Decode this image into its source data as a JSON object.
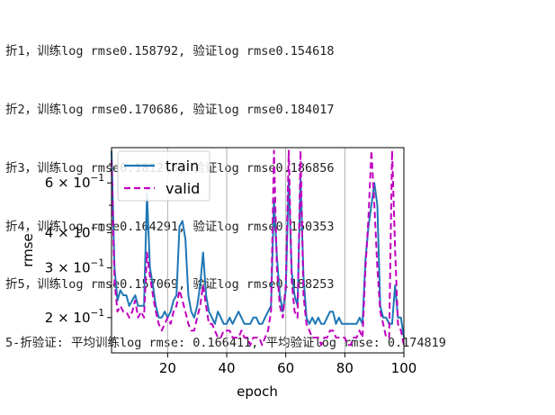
{
  "log_lines": [
    "折1，训练log rmse0.158792, 验证log rmse0.154618",
    "折2，训练log rmse0.170686, 验证log rmse0.184017",
    "折3，训练log rmse0.181218, 验证log rmse0.186856",
    "折4，训练log rmse0.164291, 验证log rmse0.160353",
    "折5，训练log rmse0.157069, 验证log rmse0.188253",
    "5-折验证: 平均训练log rmse: 0.166411, 平均验证log rmse: 0.174819"
  ],
  "colors": {
    "train": "#1f77b4",
    "valid": "#bf00bf"
  },
  "chart_data": {
    "type": "line",
    "xlabel": "epoch",
    "ylabel": "rmse",
    "xlim": [
      1,
      100
    ],
    "ylim": [
      0.15,
      0.8
    ],
    "yscale": "log",
    "grid": "x-only",
    "legend": "top-left",
    "x_ticks": [
      20,
      40,
      60,
      80,
      100
    ],
    "x_tick_labels": [
      "20",
      "40",
      "60",
      "80",
      "100"
    ],
    "y_ticks": [
      0.2,
      0.3,
      0.4,
      0.6
    ],
    "y_tick_labels_main": [
      "2 × 10",
      "3 × 10",
      "4 × 10",
      "6 × 10"
    ],
    "y_tick_label_exp": "−1",
    "series": [
      {
        "name": "train",
        "style": "solid",
        "values": [
          0.78,
          0.3,
          0.23,
          0.25,
          0.24,
          0.24,
          0.22,
          0.23,
          0.24,
          0.22,
          0.22,
          0.22,
          0.55,
          0.3,
          0.26,
          0.22,
          0.2,
          0.2,
          0.21,
          0.2,
          0.21,
          0.23,
          0.24,
          0.42,
          0.44,
          0.38,
          0.24,
          0.21,
          0.2,
          0.22,
          0.26,
          0.34,
          0.24,
          0.21,
          0.2,
          0.19,
          0.21,
          0.2,
          0.19,
          0.19,
          0.2,
          0.19,
          0.2,
          0.21,
          0.2,
          0.19,
          0.19,
          0.19,
          0.2,
          0.2,
          0.19,
          0.19,
          0.2,
          0.21,
          0.22,
          0.52,
          0.33,
          0.24,
          0.21,
          0.25,
          0.62,
          0.29,
          0.24,
          0.22,
          0.62,
          0.28,
          0.2,
          0.19,
          0.2,
          0.19,
          0.2,
          0.19,
          0.19,
          0.2,
          0.21,
          0.21,
          0.19,
          0.2,
          0.19,
          0.19,
          0.19,
          0.19,
          0.19,
          0.19,
          0.2,
          0.19,
          0.32,
          0.42,
          0.5,
          0.6,
          0.5,
          0.22,
          0.2,
          0.2,
          0.19,
          0.19,
          0.26,
          0.2,
          0.2,
          0.17
        ]
      },
      {
        "name": "valid",
        "style": "dashed",
        "values": [
          0.72,
          0.27,
          0.21,
          0.22,
          0.21,
          0.21,
          0.2,
          0.21,
          0.23,
          0.2,
          0.21,
          0.2,
          0.34,
          0.28,
          0.24,
          0.21,
          0.19,
          0.18,
          0.19,
          0.2,
          0.19,
          0.21,
          0.22,
          0.25,
          0.23,
          0.21,
          0.19,
          0.18,
          0.18,
          0.2,
          0.22,
          0.26,
          0.22,
          0.19,
          0.19,
          0.18,
          0.17,
          0.17,
          0.18,
          0.18,
          0.18,
          0.17,
          0.17,
          0.17,
          0.18,
          0.17,
          0.17,
          0.16,
          0.17,
          0.17,
          0.17,
          0.16,
          0.17,
          0.18,
          0.21,
          0.78,
          0.3,
          0.22,
          0.2,
          0.26,
          0.78,
          0.27,
          0.21,
          0.2,
          0.78,
          0.24,
          0.19,
          0.18,
          0.17,
          0.17,
          0.17,
          0.16,
          0.17,
          0.17,
          0.18,
          0.18,
          0.17,
          0.17,
          0.17,
          0.17,
          0.16,
          0.16,
          0.17,
          0.17,
          0.18,
          0.17,
          0.3,
          0.45,
          0.78,
          0.5,
          0.3,
          0.21,
          0.19,
          0.17,
          0.17,
          0.78,
          0.35,
          0.19,
          0.18,
          0.16
        ]
      }
    ]
  }
}
